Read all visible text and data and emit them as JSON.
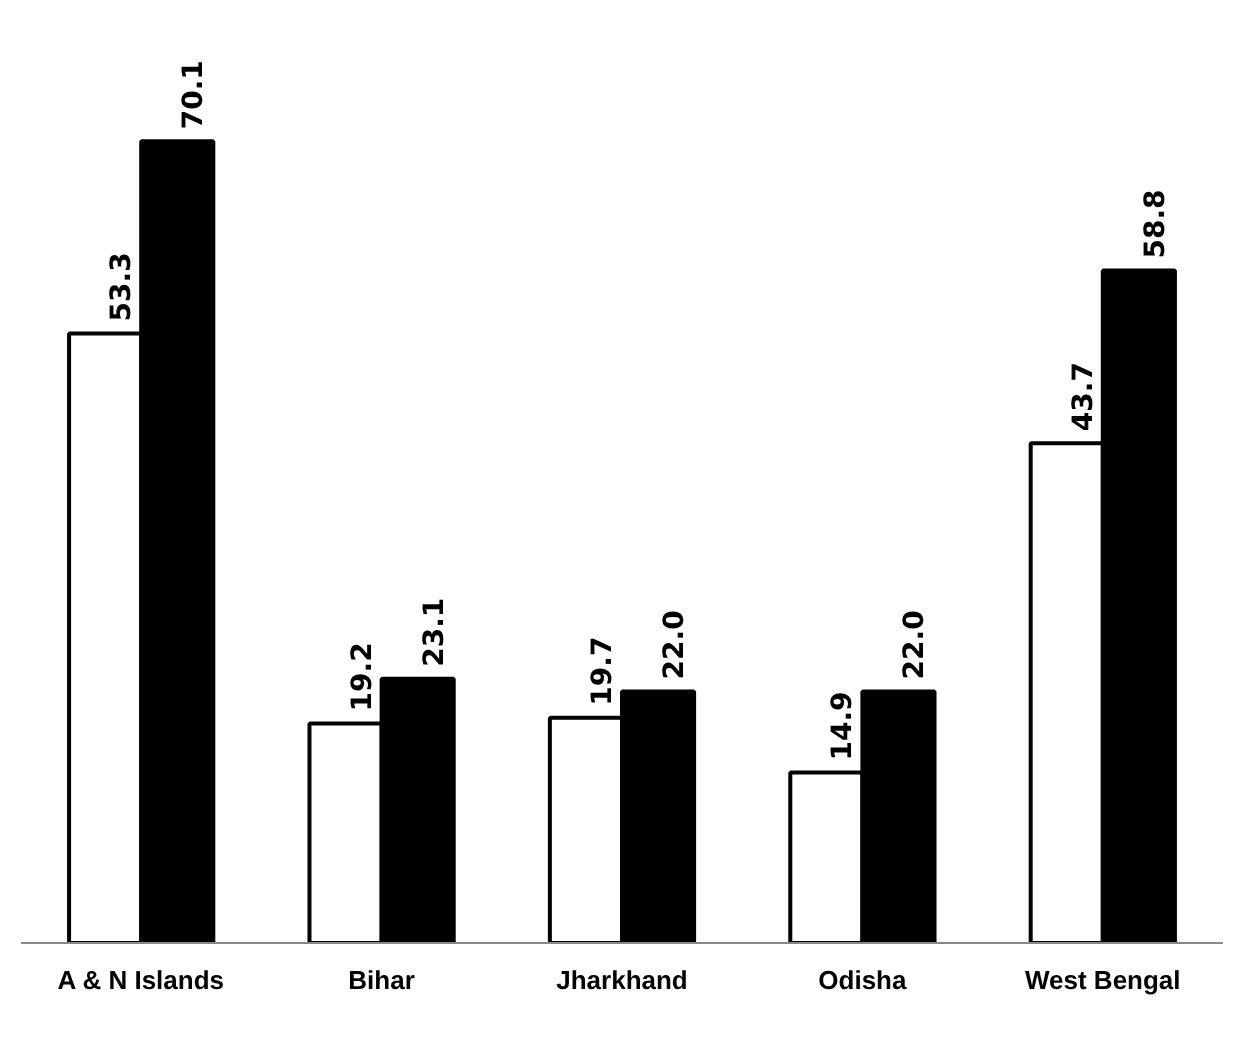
{
  "chart_data": {
    "type": "bar",
    "categories": [
      "A & N Islands",
      "Bihar",
      "Jharkhand",
      "Odisha",
      "West Bengal"
    ],
    "series": [
      {
        "color": "#ffffff",
        "values": [
          53.3,
          19.2,
          19.7,
          14.9,
          43.7
        ],
        "value_labels": [
          "53.3",
          "19.2",
          "19.7",
          "14.9",
          "43.7"
        ]
      },
      {
        "color": "#000000",
        "values": [
          70.1,
          23.1,
          22.0,
          22.0,
          58.8
        ],
        "value_labels": [
          "70.1",
          "23.1",
          "22.0",
          "22.0",
          "58.8"
        ]
      }
    ],
    "tick_labels": "x"
  }
}
